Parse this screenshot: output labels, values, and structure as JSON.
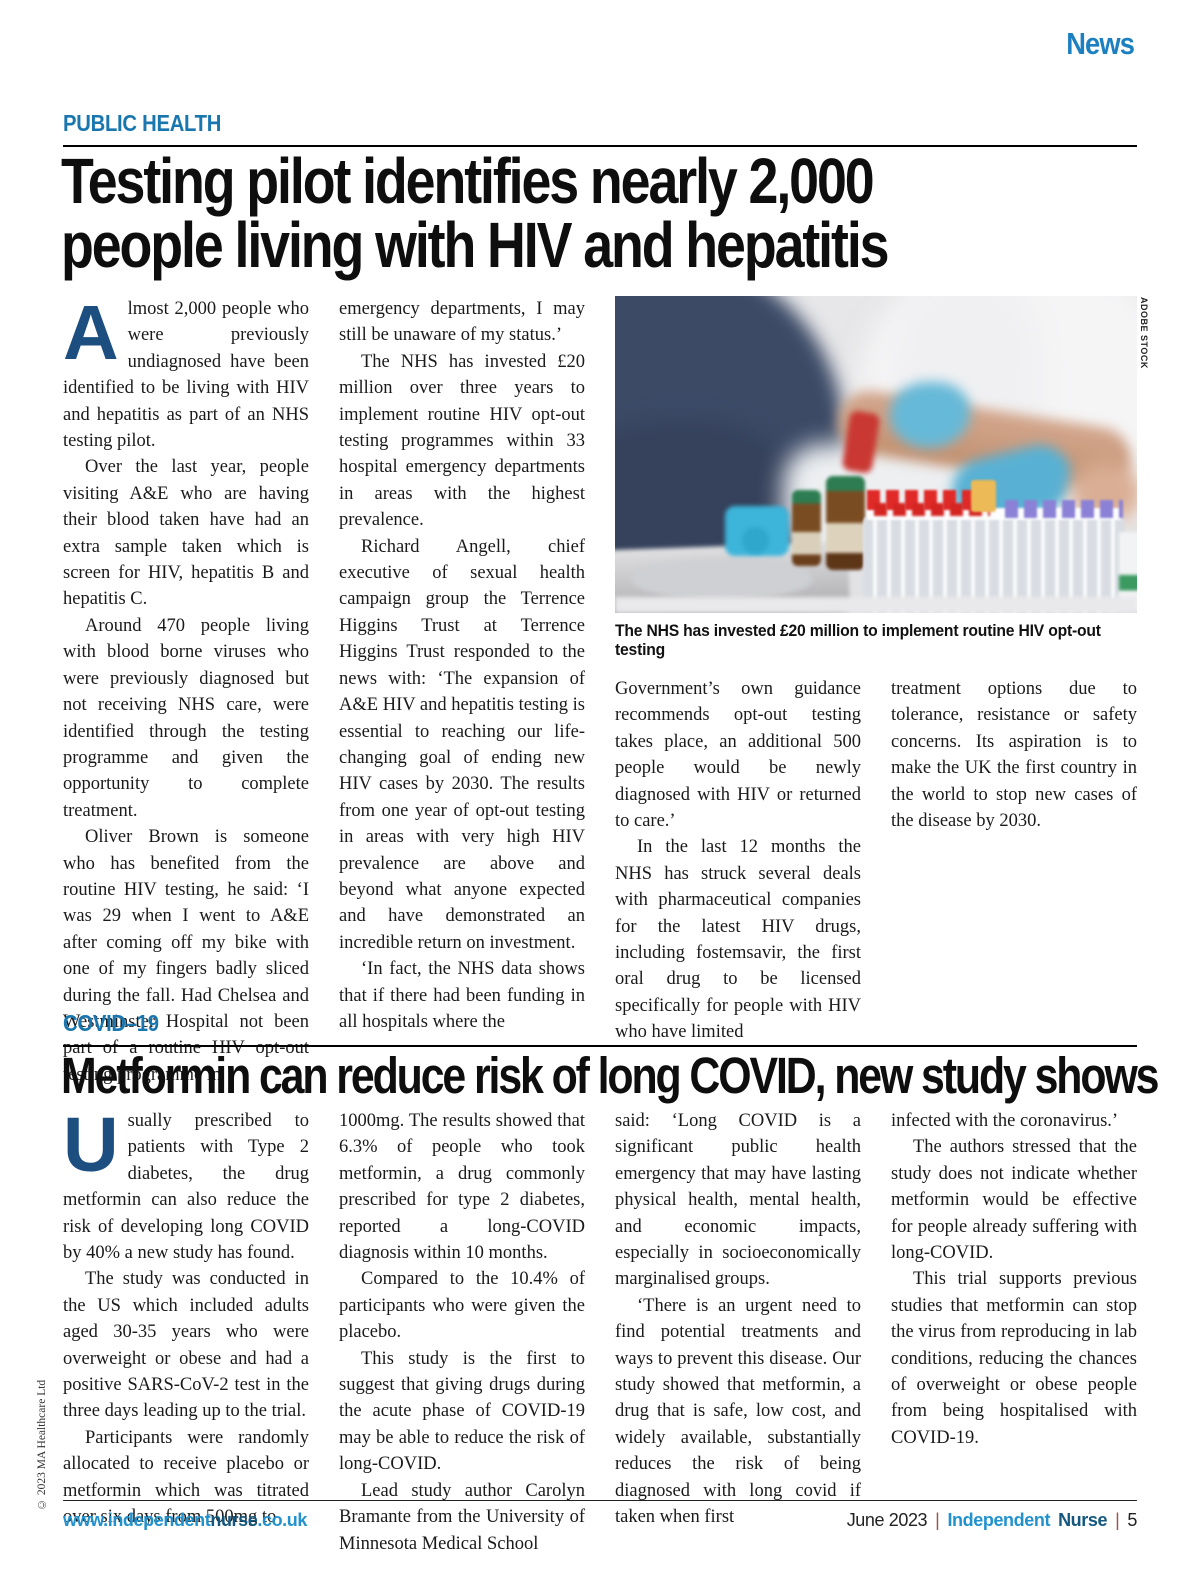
{
  "meta": {
    "top_label": "News",
    "copyright": "© 2023 MA Healthcare Ltd"
  },
  "colors": {
    "accent_blue": "#1a76ae",
    "news_blue": "#1b7fc0",
    "dropcap_blue": "#1d4e80",
    "footer_link_light": "#2292cf",
    "footer_link_dark": "#14587f",
    "pipe_red": "#a0524d",
    "headline_black": "#0e0e0e"
  },
  "article1": {
    "kicker": "PUBLIC HEALTH",
    "headline1": "Testing pilot identifies nearly 2,000",
    "headline2": "people living with HIV and hepatitis",
    "dropcap": "A",
    "col1": {
      "p1": "lmost 2,000 people who were previously undiagnosed have been identified to be living with HIV and hepatitis as part of an NHS testing pilot.",
      "p2": "Over the last year, people visiting A&E who are having their blood taken have had an extra sample taken which is screen for HIV, hepatitis B and hepatitis C.",
      "p3": "Around 470 people living with blood borne viruses who were previously diagnosed but not receiving NHS care, were identified through the testing programme and given the opportunity to complete treatment.",
      "p4": "Oliver Brown is someone who has benefited from the routine HIV testing, he said: ‘I was 29 when I went to A&E after coming off my bike with one of my fingers badly sliced during the fall. Had Chelsea and Westminster Hospital not been part of a routine HIV opt-out testing programme in"
    },
    "col2": {
      "p1": "emergency departments, I may still be unaware of my status.’",
      "p2": "The NHS has invested £20 million over three years to implement routine HIV opt-out testing programmes within 33 hospital emergency departments in areas with the highest prevalence.",
      "p3": "Richard Angell, chief executive of sexual health campaign group the Terrence Higgins Trust at Terrence Higgins Trust responded to the news with: ‘The expansion of A&E HIV and hepatitis testing is essential to reaching our life-changing goal of ending new HIV cases by 2030. The results from one year of opt-out testing in areas with very high HIV prevalence are above and beyond what anyone expected and have demonstrated an incredible return on investment.",
      "p4": "‘In fact, the NHS data shows that if there had been funding in all hospitals where the"
    },
    "caption": "The NHS has invested £20 million to implement routine HIV opt-out testing",
    "credit": "ADOBE STOCK",
    "col3": {
      "p1": "Government’s own guidance recommends opt-out testing takes place, an additional 500 people would be newly diagnosed with HIV or returned to care.’",
      "p2": "In the last 12 months the NHS has struck several deals with pharmaceutical companies for the latest HIV drugs, including fostemsavir, the first oral drug to be licensed specifically for people with HIV who have limited"
    },
    "col4": {
      "p1": "treatment options due to tolerance, resistance or safety concerns. Its aspiration is to make the UK the first country in the world to stop new cases of the disease by 2030."
    }
  },
  "article2": {
    "kicker": "COVID–19",
    "headline": "Metformin can reduce risk of long COVID, new study shows",
    "dropcap": "U",
    "col1": {
      "p1": "sually prescribed to patients with Type 2 diabetes, the drug metformin can also reduce the risk of developing long COVID by 40% a new study has found.",
      "p2": "The study was conducted in the US which included adults aged 30-35 years who were overweight or obese and had a positive SARS-CoV-2 test in the three days leading up to the trial.",
      "p3": "Participants were randomly allocated to receive placebo or metformin which was titrated over six days from 500mg to"
    },
    "col2": {
      "p1": "1000mg. The results showed that 6.3% of people who took metformin, a drug commonly prescribed for type 2 diabetes, reported a long-COVID diagnosis within 10 months.",
      "p2": "Compared to the 10.4% of participants who were given the placebo.",
      "p3": "This study is the first to suggest that giving drugs during the acute phase of COVID-19 may be able to reduce the risk of long-COVID.",
      "p4": "Lead study author Carolyn Bramante from the University of Minnesota Medical School"
    },
    "col3": {
      "p1": "said: ‘Long COVID is a significant public health emergency that may have lasting physical health, mental health, and economic impacts, especially in socioeconomically marginalised groups.",
      "p2": "‘There is an urgent need to find potential treatments and ways to prevent this disease. Our study showed that metformin, a drug that is safe, low cost, and widely available, substantially reduces the risk of being diagnosed with long covid if taken when first"
    },
    "col4": {
      "p1": "infected with the coronavirus.’",
      "p2": "The authors stressed that the study does not indicate whether metformin would be effective for people already suffering with long-COVID.",
      "p3": "This trial supports previous studies that metformin can stop the virus from reproducing in lab conditions, reducing the chances of overweight or obese people from being hospitalised with COVID-19."
    }
  },
  "footer": {
    "url_pre": "www.independent",
    "url_bold": "nurse",
    "url_suf": ".co.uk",
    "date": "June 2023",
    "sep": "|",
    "brand_light": "Independent",
    "brand_dark": "Nurse",
    "page": "5"
  }
}
